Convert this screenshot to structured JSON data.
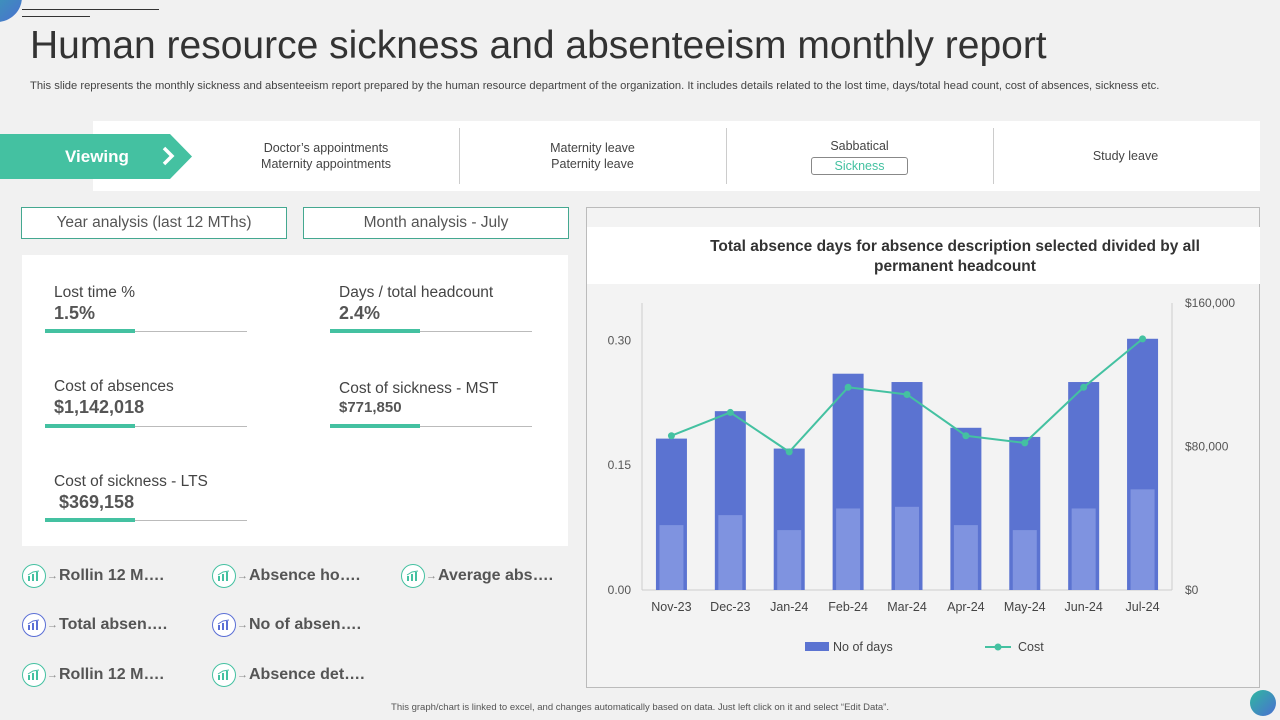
{
  "title": "Human resource sickness and absenteeism monthly report",
  "subtitle": "This slide represents the monthly sickness and absenteeism report prepared by the human resource department of the organization. It includes details related to the lost time, days/total head count, cost of absences, sickness etc.",
  "viewing": {
    "label": "Viewing",
    "filters": [
      {
        "line1": "Doctor’s appointments",
        "line2": "Maternity appointments"
      },
      {
        "line1": "Maternity leave",
        "line2": "Paternity leave"
      },
      {
        "line1": "Sabbatical",
        "line2": "Sickness",
        "line2_selected": true
      },
      {
        "line1": "Study leave",
        "line2": ""
      }
    ]
  },
  "tabs": {
    "year": "Year analysis (last 12 MThs)",
    "month": "Month analysis - July"
  },
  "kpis": {
    "lost_time": {
      "label": "Lost time %",
      "value": "1.5%"
    },
    "days_headcount": {
      "label": "Days / total headcount",
      "value": "2.4%"
    },
    "cost_absences": {
      "label": "Cost of absences",
      "value": "$1,142,018"
    },
    "cost_sickness_mst": {
      "label": "Cost of sickness - MST",
      "value": "$771,850"
    },
    "cost_sickness_lts": {
      "label": "Cost of sickness - LTS",
      "value": "$369,158"
    }
  },
  "links": [
    {
      "label": "Rollin 12 M….",
      "icon": "chart-icon",
      "color": "#44c1a1"
    },
    {
      "label": "Absence ho….",
      "icon": "chart-icon",
      "color": "#44c1a1"
    },
    {
      "label": "Average abs….",
      "icon": "chart-icon",
      "color": "#44c1a1"
    },
    {
      "label": "Total absen….",
      "icon": "chart-icon",
      "color": "#5b6fd6"
    },
    {
      "label": "No of absen….",
      "icon": "chart-icon",
      "color": "#5b6fd6"
    },
    {
      "label": "Rollin 12 M….",
      "icon": "chart-icon",
      "color": "#44c1a1"
    },
    {
      "label": "Absence det….",
      "icon": "chart-icon",
      "color": "#44c1a1"
    }
  ],
  "footer": "This graph/chart is linked to excel, and changes automatically based on data. Just left click on it and select “Edit Data”.",
  "colors": {
    "accent": "#44c1a1",
    "bar": "#5b73d1",
    "bar_inner": "#7f93e0",
    "line": "#44c1a1"
  },
  "chart_data": {
    "type": "bar",
    "title": "Total absence days for absence description selected divided by all permanent headcount",
    "categories": [
      "Nov-23",
      "Dec-23",
      "Jan-24",
      "Feb-24",
      "Mar-24",
      "Apr-24",
      "May-24",
      "Jun-24",
      "Jul-24"
    ],
    "left_axis": {
      "ticks": [
        "0.00",
        "0.15",
        "0.30"
      ],
      "ylim": [
        0,
        0.345
      ]
    },
    "right_axis": {
      "ticks": [
        "$0",
        "$80,000",
        "$160,000"
      ],
      "ylim": [
        0,
        160000
      ]
    },
    "series": [
      {
        "name": "No of days",
        "type": "bar",
        "axis": "left",
        "values": [
          0.182,
          0.215,
          0.17,
          0.26,
          0.25,
          0.195,
          0.184,
          0.25,
          0.302
        ],
        "inner_values": [
          0.078,
          0.09,
          0.072,
          0.098,
          0.1,
          0.078,
          0.072,
          0.098,
          0.121
        ]
      },
      {
        "name": "Cost",
        "type": "line",
        "axis": "right",
        "values": [
          86000,
          99000,
          77000,
          113000,
          109000,
          86000,
          82000,
          113000,
          140000
        ]
      }
    ],
    "legend": "bottom"
  }
}
